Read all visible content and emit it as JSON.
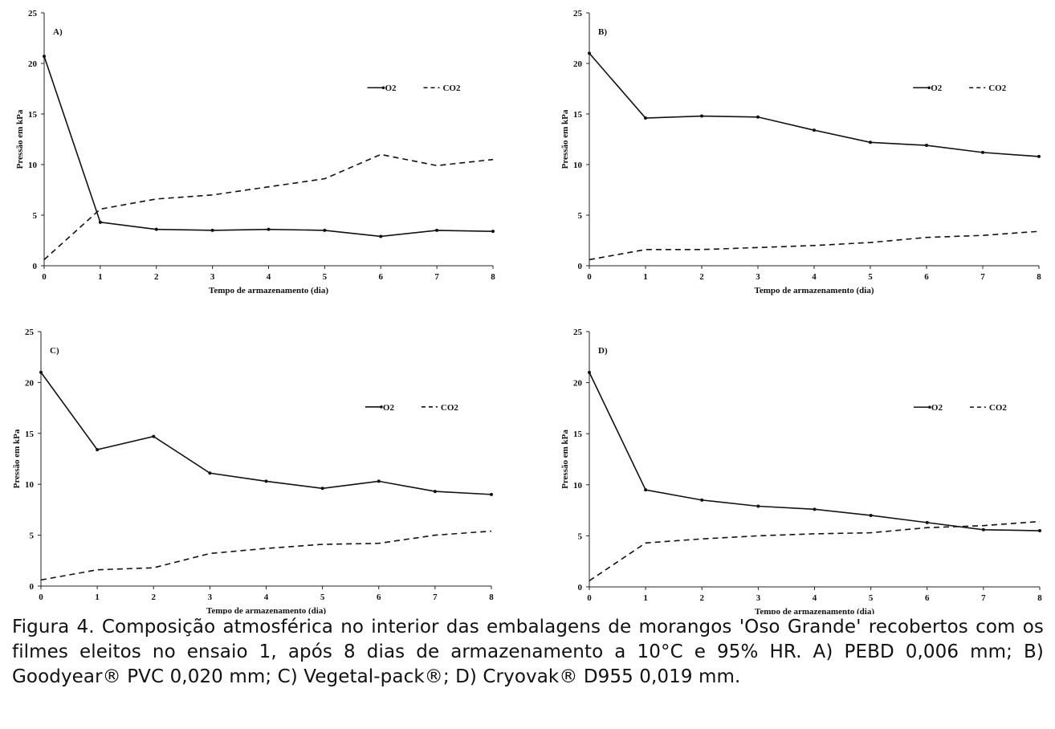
{
  "chart_data": [
    {
      "type": "line",
      "panel_label": "A)",
      "x": [
        0,
        1,
        2,
        3,
        4,
        5,
        6,
        7,
        8
      ],
      "series": [
        {
          "name": "O2",
          "style": "solid-markers",
          "values": [
            20.7,
            4.3,
            3.6,
            3.5,
            3.6,
            3.5,
            2.9,
            3.5,
            3.4
          ]
        },
        {
          "name": "CO2",
          "style": "dashed",
          "values": [
            0.6,
            5.6,
            6.6,
            7.0,
            7.8,
            8.6,
            11.0,
            9.9,
            10.5
          ]
        }
      ],
      "xlabel": "Tempo de armazenamento  (dia)",
      "ylabel": "Pressão  em kPa",
      "xlim": [
        0,
        8
      ],
      "ylim": [
        0,
        25
      ],
      "xticks": [
        "0",
        "1",
        "2",
        "3",
        "4",
        "5",
        "6",
        "7",
        "8"
      ],
      "yticks": [
        "0",
        "5",
        "10",
        "15",
        "20",
        "25"
      ],
      "legend": "top-right",
      "grid": false
    },
    {
      "type": "line",
      "panel_label": "B)",
      "x": [
        0,
        1,
        2,
        3,
        4,
        5,
        6,
        7,
        8
      ],
      "series": [
        {
          "name": "O2",
          "style": "solid-markers",
          "values": [
            21.0,
            14.6,
            14.8,
            14.7,
            13.4,
            12.2,
            11.9,
            11.2,
            10.8
          ]
        },
        {
          "name": "CO2",
          "style": "dashed",
          "values": [
            0.6,
            1.6,
            1.6,
            1.8,
            2.0,
            2.3,
            2.8,
            3.0,
            3.4
          ]
        }
      ],
      "xlabel": "Tempo de armazenamento  (dia)",
      "ylabel": "Pressão  em kPa",
      "xlim": [
        0,
        8
      ],
      "ylim": [
        0,
        25
      ],
      "xticks": [
        "0",
        "1",
        "2",
        "3",
        "4",
        "5",
        "6",
        "7",
        "8"
      ],
      "yticks": [
        "0",
        "5",
        "10",
        "15",
        "20",
        "25"
      ],
      "legend": "top-right",
      "grid": false
    },
    {
      "type": "line",
      "panel_label": "C)",
      "x": [
        0,
        1,
        2,
        3,
        4,
        5,
        6,
        7,
        8
      ],
      "series": [
        {
          "name": "O2",
          "style": "solid-markers",
          "values": [
            21.0,
            13.4,
            14.7,
            11.1,
            10.3,
            9.6,
            10.3,
            9.3,
            9.0
          ]
        },
        {
          "name": "CO2",
          "style": "dashed",
          "values": [
            0.6,
            1.6,
            1.8,
            3.2,
            3.7,
            4.1,
            4.2,
            5.0,
            5.4
          ]
        }
      ],
      "xlabel": "Tempo de armazenamento  (dia)",
      "ylabel": "Pressão  em kPa",
      "xlim": [
        0,
        8
      ],
      "ylim": [
        0,
        25
      ],
      "xticks": [
        "0",
        "1",
        "2",
        "3",
        "4",
        "5",
        "6",
        "7",
        "8"
      ],
      "yticks": [
        "0",
        "5",
        "10",
        "15",
        "20",
        "25"
      ],
      "legend": "top-right",
      "grid": false
    },
    {
      "type": "line",
      "panel_label": "D)",
      "x": [
        0,
        1,
        2,
        3,
        4,
        5,
        6,
        7,
        8
      ],
      "series": [
        {
          "name": "O2",
          "style": "solid-markers",
          "values": [
            21.0,
            9.5,
            8.5,
            7.9,
            7.6,
            7.0,
            6.3,
            5.6,
            5.5
          ]
        },
        {
          "name": "CO2",
          "style": "dashed",
          "values": [
            0.6,
            4.3,
            4.7,
            5.0,
            5.2,
            5.3,
            5.8,
            6.0,
            6.4
          ]
        }
      ],
      "xlabel": "Tempo de armazenamento  (dia)",
      "ylabel": "Pressão  em kPa",
      "xlim": [
        0,
        8
      ],
      "ylim": [
        0,
        25
      ],
      "xticks": [
        "0",
        "1",
        "2",
        "3",
        "4",
        "5",
        "6",
        "7",
        "8"
      ],
      "yticks": [
        "0",
        "5",
        "10",
        "15",
        "20",
        "25"
      ],
      "legend": "top-right",
      "grid": false
    }
  ],
  "caption": "Figura 4. Composição atmosférica no interior das embalagens de morangos 'Oso Grande' recobertos com os filmes eleitos no ensaio 1, após 8 dias de armazenamento a 10°C e 95% HR. A) PEBD 0,006 mm; B) Goodyear® PVC 0,020 mm; C) Vegetal-pack®; D) Cryovak® D955 0,019 mm.",
  "colors": {
    "line": "#111111",
    "axis": "#222222"
  }
}
